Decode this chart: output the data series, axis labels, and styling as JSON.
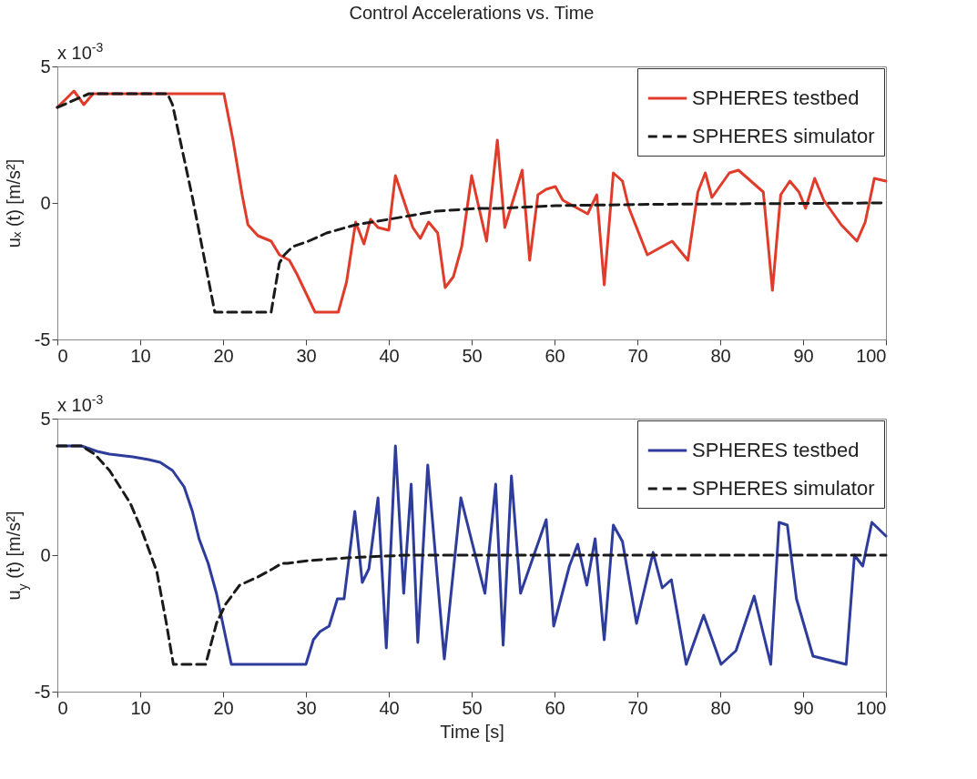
{
  "chart_data": [
    {
      "type": "line",
      "title": "Control Accelerations vs. Time",
      "ylabel": "uₓ (t) [m/s²]",
      "annotations": [
        "x 10$^{-3}$"
      ],
      "xlim": [
        0,
        100
      ],
      "xticks": [
        0,
        10,
        20,
        30,
        40,
        50,
        60,
        70,
        80,
        90,
        100
      ],
      "ylim": [
        -5,
        5
      ],
      "yticks": [
        -5,
        0,
        5
      ],
      "legend": "top right",
      "series": [
        {
          "name": "SPHERES testbed",
          "color": "#e03c2c",
          "line_style": "solid",
          "x": [
            0,
            2.0,
            3.2,
            4.3,
            20.1,
            21.2,
            22.3,
            23.0,
            24.2,
            25.8,
            26.8,
            28.0,
            28.9,
            31.1,
            33.9,
            34.9,
            36.0,
            37.0,
            37.8,
            38.7,
            40.0,
            40.8,
            42.9,
            43.8,
            44.8,
            45.9,
            46.8,
            47.8,
            48.8,
            50.0,
            51.8,
            53.1,
            54.0,
            56.1,
            57.0,
            58.0,
            59.0,
            60.1,
            61.0,
            64.0,
            65.1,
            66.0,
            67.1,
            68.2,
            69.0,
            71.2,
            74.2,
            76.1,
            77.3,
            78.2,
            79.0,
            81.1,
            82.2,
            85.2,
            86.3,
            87.3,
            88.4,
            89.5,
            90.3,
            91.4,
            92.5,
            94.6,
            96.5,
            97.5,
            98.6,
            100
          ],
          "values": [
            3.5,
            4.1,
            3.6,
            4.0,
            4.0,
            2.3,
            0.3,
            -0.8,
            -1.2,
            -1.4,
            -1.9,
            -2.1,
            -2.6,
            -4.0,
            -4.0,
            -2.9,
            -0.7,
            -1.5,
            -0.6,
            -0.9,
            -1.0,
            1.0,
            -0.9,
            -1.3,
            -0.7,
            -1.1,
            -3.1,
            -2.7,
            -1.6,
            1.0,
            -1.4,
            2.3,
            -0.9,
            1.2,
            -2.1,
            0.3,
            0.5,
            0.6,
            0.1,
            -0.4,
            0.3,
            -3.0,
            1.1,
            0.8,
            -0.2,
            -1.9,
            -1.4,
            -2.1,
            0.4,
            1.1,
            0.2,
            1.1,
            1.2,
            0.4,
            -3.2,
            0.3,
            0.8,
            0.4,
            -0.2,
            0.9,
            0.1,
            -0.8,
            -1.4,
            -0.7,
            0.9,
            0.8
          ]
        },
        {
          "name": "SPHERES simulator",
          "color": "#1a1a1a",
          "line_style": "dashed",
          "x": [
            0,
            3.8,
            13.3,
            13.9,
            16.3,
            19.0,
            25.8,
            26.8,
            27.4,
            28.4,
            30.3,
            32.5,
            36.0,
            40.0,
            45.7,
            50.8,
            53.2,
            60.1,
            71.5,
            100
          ],
          "values": [
            3.5,
            4.0,
            4.0,
            3.6,
            0.2,
            -4.0,
            -4.0,
            -2.2,
            -1.9,
            -1.6,
            -1.4,
            -1.1,
            -0.8,
            -0.6,
            -0.3,
            -0.2,
            -0.2,
            -0.1,
            -0.05,
            0
          ]
        }
      ]
    },
    {
      "type": "line",
      "xlabel": "Time [s]",
      "ylabel": "u$_{y}$ (t) [m/s²]",
      "annotations": [
        "x 10$^{-3}$"
      ],
      "xlim": [
        0,
        100
      ],
      "xticks": [
        0,
        10,
        20,
        30,
        40,
        50,
        60,
        70,
        80,
        90,
        100
      ],
      "ylim": [
        -5,
        5
      ],
      "yticks": [
        -5,
        0,
        5
      ],
      "legend": "top right",
      "series": [
        {
          "name": "SPHERES testbed",
          "color": "#2e3c9c",
          "line_style": "solid",
          "x": [
            0,
            2.9,
            4.8,
            6.3,
            9.1,
            11.0,
            12.4,
            13.9,
            15.3,
            16.3,
            17.1,
            18.2,
            19.2,
            21.0,
            30.0,
            30.9,
            31.7,
            32.8,
            33.8,
            34.6,
            35.9,
            36.8,
            37.6,
            38.7,
            39.7,
            40.8,
            41.8,
            42.7,
            43.5,
            44.7,
            46.7,
            48.7,
            51.6,
            52.9,
            53.8,
            54.8,
            55.9,
            59.0,
            59.9,
            61.8,
            62.8,
            63.9,
            64.9,
            66.0,
            67.1,
            68.2,
            69.9,
            71.9,
            73.0,
            74.1,
            75.9,
            78.0,
            80.1,
            81.9,
            84.1,
            86.1,
            87.1,
            88.1,
            89.2,
            91.2,
            95.2,
            96.2,
            97.2,
            98.3,
            100
          ],
          "values": [
            4.0,
            4.0,
            3.8,
            3.7,
            3.6,
            3.5,
            3.4,
            3.1,
            2.5,
            1.6,
            0.6,
            -0.3,
            -1.4,
            -4.0,
            -4.0,
            -3.1,
            -2.8,
            -2.6,
            -1.6,
            -1.6,
            1.6,
            -1.0,
            -0.5,
            2.1,
            -3.4,
            4.0,
            -1.4,
            2.6,
            -3.2,
            3.3,
            -3.8,
            2.1,
            -1.4,
            2.6,
            -3.3,
            2.9,
            -1.4,
            1.3,
            -2.6,
            -0.4,
            0.4,
            -1.1,
            0.6,
            -3.1,
            1.1,
            0.5,
            -2.5,
            0.1,
            -1.2,
            -0.9,
            -4.0,
            -2.2,
            -4.0,
            -3.5,
            -1.5,
            -4.0,
            1.2,
            1.1,
            -1.6,
            -3.7,
            -4.0,
            0.0,
            -0.4,
            1.2,
            0.7
          ]
        },
        {
          "name": "SPHERES simulator",
          "color": "#1a1a1a",
          "line_style": "dashed",
          "x": [
            0,
            2.9,
            4.5,
            6.3,
            8.8,
            10.2,
            12.0,
            13.1,
            14.0,
            17.9,
            19.2,
            20.3,
            22.0,
            24.2,
            26.0,
            27.1,
            27.8,
            30.3,
            34.9,
            42.2,
            100
          ],
          "values": [
            4.0,
            4.0,
            3.7,
            3.1,
            1.9,
            0.9,
            -0.6,
            -2.4,
            -4.0,
            -4.0,
            -2.5,
            -1.8,
            -1.1,
            -0.8,
            -0.5,
            -0.3,
            -0.3,
            -0.2,
            -0.1,
            0,
            0
          ]
        }
      ]
    }
  ]
}
